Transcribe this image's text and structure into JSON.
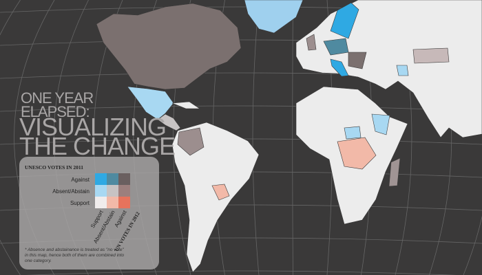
{
  "title": {
    "line1": "ONE YEAR",
    "line2": "ELAPSED:",
    "line3": "VISUALIZING",
    "line4": "THE CHANGE"
  },
  "legend": {
    "title": "UNESCO VOTES IN 2011",
    "rows": [
      "Against",
      "Absent/Abstain",
      "Support"
    ],
    "columns": [
      "Support",
      "Absent/Abstain",
      "Against"
    ],
    "columns_title": "UN VOTES IN 2012",
    "colors": [
      [
        "#2fa9e3",
        "#4f8aa0",
        "#6a5f5f"
      ],
      [
        "#a8d8f2",
        "#c7c3c3",
        "#9c7f7d"
      ],
      [
        "#f0ecec",
        "#f2b9a8",
        "#e6735c"
      ]
    ],
    "footnote": "* Absence and abstainance is treated as \"no vote\" in this map, hence both of them are combined into one category."
  }
}
